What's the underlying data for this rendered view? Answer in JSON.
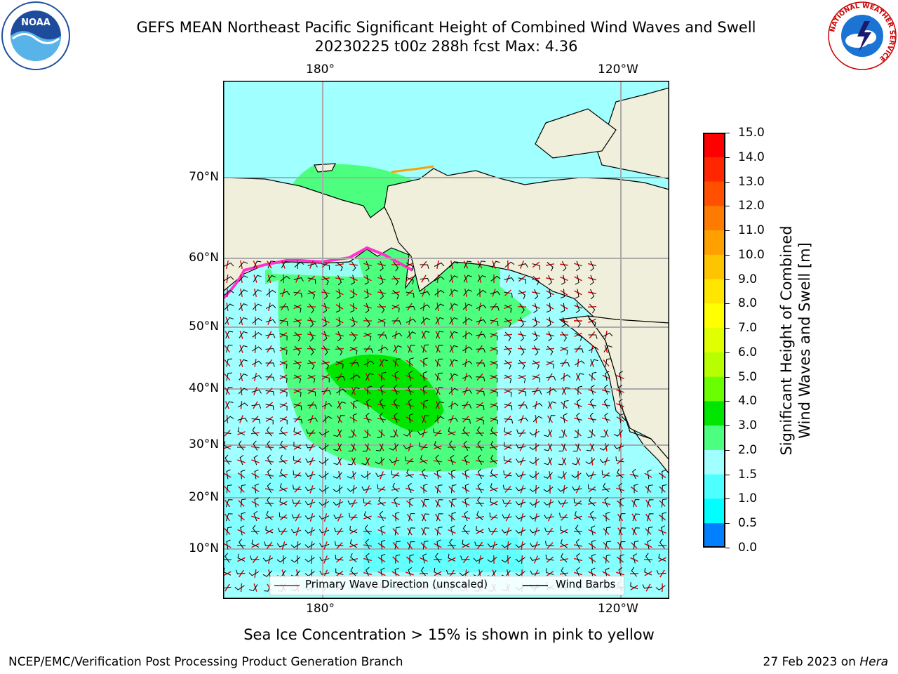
{
  "header": {
    "title_line1": "GEFS MEAN Northeast Pacific Significant Height of Combined Wind Waves and Swell",
    "title_line2": "20230225 t00z 288h fcst   Max: 4.36"
  },
  "logos": {
    "left": {
      "name": "noaa-logo",
      "text": "NOAA"
    },
    "right": {
      "name": "nws-logo",
      "text": "NATIONAL WEATHER SERVICE"
    }
  },
  "map": {
    "lon_labels_top": [
      "180°",
      "120°W"
    ],
    "lon_labels_bottom": [
      "180°",
      "120°W"
    ],
    "lat_labels": [
      "70°N",
      "60°N",
      "50°N",
      "40°N",
      "30°N",
      "20°N",
      "10°N"
    ],
    "land_color": "#efefdc",
    "ocean_low_color": "#a0ffff",
    "ocean_mid_color": "#4dff7f",
    "ocean_high_color": "#00e200",
    "ice_color": "#ff33cc",
    "wave_arrow_color": "#dd0000",
    "barb_color": "#000000"
  },
  "colorbar": {
    "label_line1": "Significant Height of Combined",
    "label_line2": "Wind Waves and Swell [m]",
    "ticks": [
      "15.0",
      "14.0",
      "13.0",
      "12.0",
      "11.0",
      "10.0",
      "9.0",
      "8.0",
      "7.0",
      "6.0",
      "5.0",
      "4.0",
      "3.0",
      "2.0",
      "1.5",
      "1.0",
      "0.5",
      "0.0"
    ],
    "colors": [
      "#ff0000",
      "#ff2600",
      "#ff5000",
      "#ff7a00",
      "#ffa000",
      "#ffc400",
      "#ffe600",
      "#ffff00",
      "#e0ff00",
      "#b7ff00",
      "#69ff00",
      "#00e600",
      "#4dff7f",
      "#a0ffff",
      "#4dffff",
      "#00ffff",
      "#0080ff",
      "#0000ff"
    ]
  },
  "legend": {
    "wave_label": "Primary Wave Direction (unscaled)",
    "barb_label": "Wind Barbs"
  },
  "note": "Sea Ice Concentration > 15% is shown in pink to yellow",
  "footer": {
    "left": "NCEP/EMC/Verification Post Processing Product Generation Branch",
    "date": "27 Feb 2023 on ",
    "machine": "Hera"
  }
}
